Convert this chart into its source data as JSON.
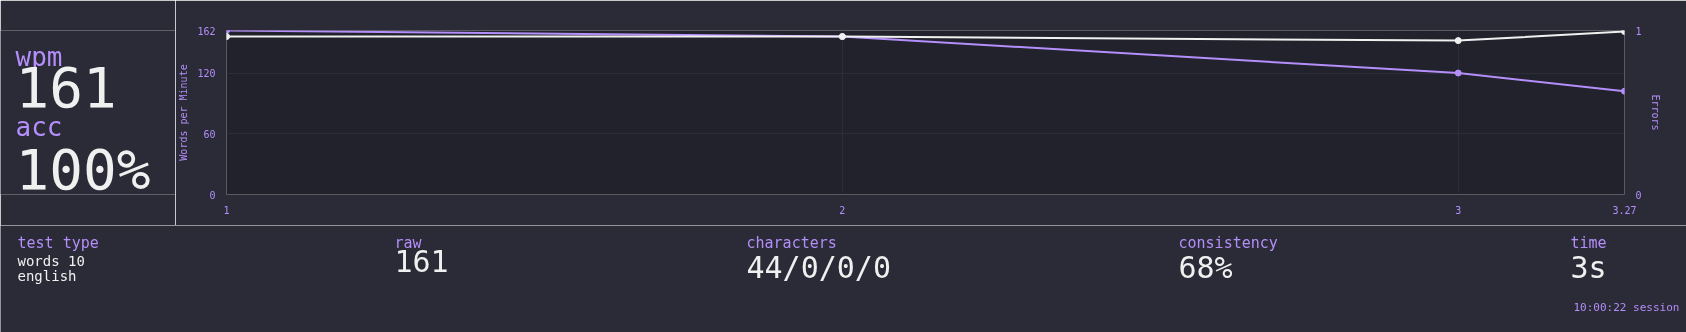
{
  "chart_data": [
    {
      "type": "other",
      "annotations": [
        "wpm",
        "161",
        "acc",
        "100%"
      ]
    },
    {
      "type": "line",
      "x": [
        1,
        2,
        3,
        3.27
      ],
      "xlim": [
        1,
        3.27
      ],
      "xticks": [
        1,
        2,
        3,
        3.27
      ],
      "ylim": [
        0,
        162
      ],
      "yticks": [
        0,
        60,
        120,
        162
      ],
      "ylabel": "Words per Minute",
      "y2label": "Errors",
      "y2lim": [
        0,
        1
      ],
      "y2ticks": [
        0,
        1
      ],
      "grid": true,
      "marker": "circle",
      "line_style": "solid",
      "series": [
        {
          "color": "#b48efa",
          "values": [
            162,
            156,
            120,
            102
          ]
        },
        {
          "color": "#f0f0f0",
          "values": [
            156,
            156,
            152,
            161
          ]
        }
      ]
    },
    {
      "type": "other",
      "annotations": [
        "test type",
        "words 10\nenglish",
        "raw",
        "161",
        "characters",
        "44/0/0/0",
        "consistency",
        "68%",
        "time",
        "3s",
        "10:00:22 session"
      ]
    }
  ]
}
